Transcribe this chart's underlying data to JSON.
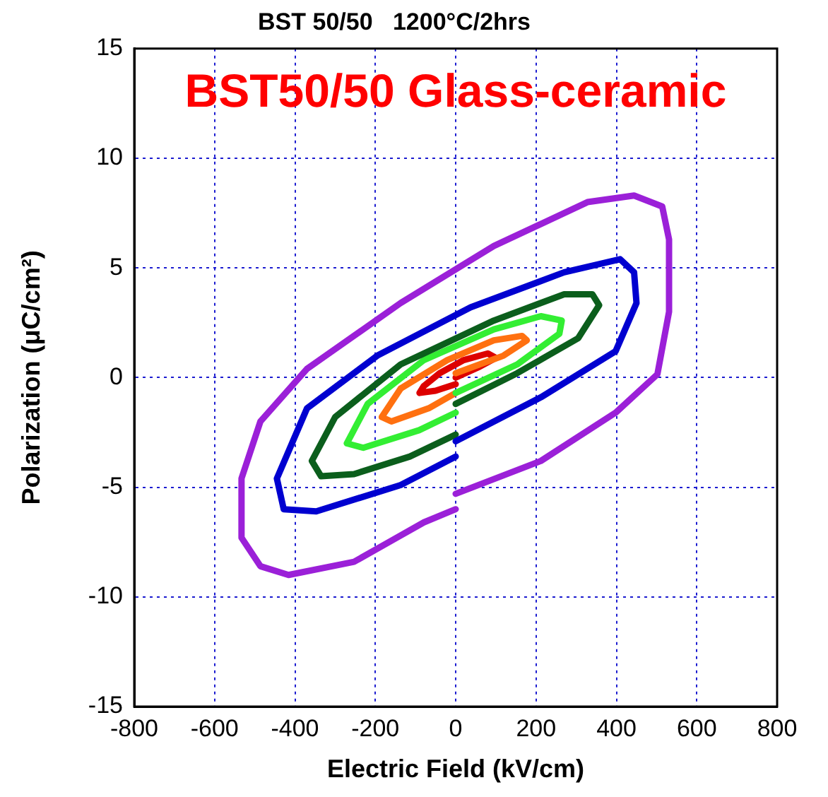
{
  "chart_data": {
    "type": "line",
    "title": "BST 50/50   1200°C/2hrs",
    "xlabel": "Electric Field (kV/cm)",
    "ylabel": "Polarization (μC/cm²)",
    "annotations": [
      "BST50/50 Glass-ceramic"
    ],
    "xlim": [
      -800,
      800
    ],
    "xticks": [
      -800,
      -600,
      -400,
      -200,
      0,
      200,
      400,
      600,
      800
    ],
    "ylim": [
      -15,
      15
    ],
    "yticks": [
      -15,
      -10,
      -5,
      0,
      5,
      10,
      15
    ],
    "grid": true,
    "legend": false,
    "marker": "none",
    "line_style": "solid",
    "series": [
      {
        "color": "#9b20d8",
        "x": [
          0,
          212,
          398,
          502,
          531,
          531,
          514,
          444,
          328,
          95,
          -137,
          -370,
          -486,
          -533,
          -533,
          -486,
          -416,
          -253,
          -79,
          0
        ],
        "values": [
          -5.3,
          -3.8,
          -1.6,
          0.15,
          3.0,
          6.3,
          7.8,
          8.3,
          8.0,
          6.0,
          3.4,
          0.4,
          -2.0,
          -4.6,
          -7.3,
          -8.6,
          -9.0,
          -8.4,
          -6.6,
          -6.0
        ]
      },
      {
        "color": "#0000d0",
        "x": [
          0,
          212,
          398,
          450,
          444,
          409,
          270,
          37,
          -195,
          -370,
          -445,
          -428,
          -347,
          -137,
          0
        ],
        "values": [
          -2.9,
          -0.9,
          1.2,
          3.4,
          4.8,
          5.4,
          4.8,
          3.2,
          1.0,
          -1.4,
          -4.6,
          -6.0,
          -6.1,
          -4.9,
          -3.6
        ]
      },
      {
        "color": "#0b5e1c",
        "x": [
          0,
          153,
          305,
          357,
          340,
          270,
          95,
          -137,
          -300,
          -358,
          -335,
          -253,
          -114,
          0
        ],
        "values": [
          -1.2,
          0.2,
          1.8,
          3.3,
          3.8,
          3.8,
          2.6,
          0.6,
          -1.8,
          -3.8,
          -4.5,
          -4.4,
          -3.6,
          -2.6
        ]
      },
      {
        "color": "#33ee33",
        "x": [
          0,
          153,
          258,
          264,
          212,
          95,
          -79,
          -219,
          -271,
          -230,
          -91,
          0
        ],
        "values": [
          -0.7,
          0.6,
          2.0,
          2.6,
          2.8,
          2.2,
          0.8,
          -1.2,
          -3.0,
          -3.2,
          -2.4,
          -1.6
        ]
      },
      {
        "color": "#ff7010",
        "x": [
          0,
          119,
          177,
          165,
          95,
          -21,
          -137,
          -184,
          -160,
          -67,
          0
        ],
        "values": [
          0.2,
          1.0,
          1.7,
          1.9,
          1.7,
          0.8,
          -0.5,
          -1.8,
          -2.0,
          -1.4,
          -0.7
        ]
      },
      {
        "color": "#dd0000",
        "x": [
          0,
          60,
          100,
          80,
          20,
          -40,
          -80,
          -90,
          -50,
          0
        ],
        "values": [
          0.0,
          0.5,
          0.9,
          1.1,
          0.8,
          0.2,
          -0.4,
          -0.7,
          -0.6,
          -0.3
        ]
      }
    ]
  }
}
